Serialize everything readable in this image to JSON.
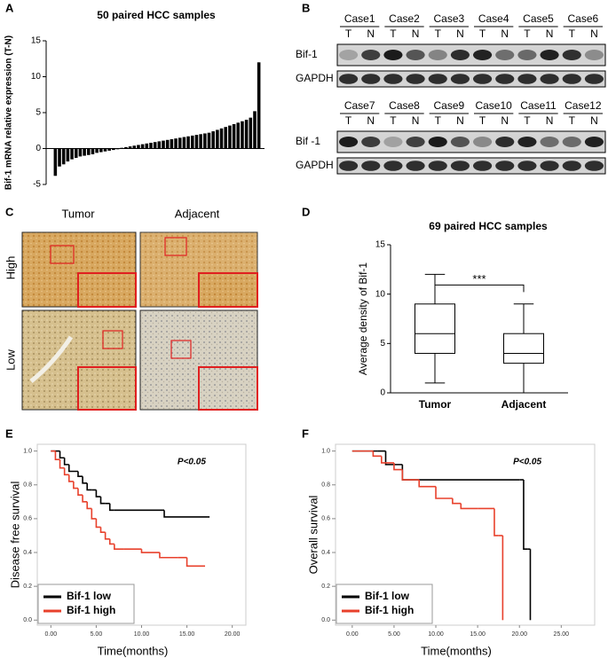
{
  "panel_labels": [
    "A",
    "B",
    "C",
    "D",
    "E",
    "F"
  ],
  "blots": {
    "lanes": [
      "T",
      "N"
    ],
    "groups": [
      {
        "cases": [
          "Case1",
          "Case2",
          "Case3",
          "Case4",
          "Case5",
          "Case6"
        ],
        "rows": [
          "Bif-1",
          "GAPDH"
        ]
      },
      {
        "cases": [
          "Case7",
          "Case8",
          "Case9",
          "Case10",
          "Case11",
          "Case12"
        ],
        "rows": [
          "Bif -1",
          "GAPDH"
        ]
      }
    ]
  },
  "ihc": {
    "columns": [
      "Tumor",
      "Adjacent"
    ],
    "rows": [
      "High",
      "Low"
    ]
  },
  "chart_data": [
    {
      "type": "bar",
      "title": "50 paired HCC samples",
      "ylabel": "Bif-1 mRNA relative expression (T-N)",
      "color": "#000000",
      "values": [
        -3.8,
        -2.5,
        -2.2,
        -1.8,
        -1.5,
        -1.3,
        -1.1,
        -1.0,
        -0.9,
        -0.8,
        -0.6,
        -0.5,
        -0.4,
        -0.3,
        -0.2,
        -0.1,
        0.1,
        0.2,
        0.3,
        0.4,
        0.5,
        0.6,
        0.7,
        0.8,
        0.9,
        1.0,
        1.1,
        1.2,
        1.3,
        1.4,
        1.5,
        1.6,
        1.7,
        1.8,
        1.9,
        2.0,
        2.1,
        2.2,
        2.4,
        2.6,
        2.8,
        3.0,
        3.2,
        3.4,
        3.6,
        3.8,
        4.0,
        4.3,
        5.2,
        12
      ],
      "ylim": [
        -5,
        15
      ],
      "yticks": [
        -5,
        0,
        5,
        10,
        15
      ]
    },
    {
      "type": "box",
      "title": "69 paired HCC samples",
      "ylabel": "Average density of Bif-1",
      "categories": [
        "Tumor",
        "Adjacent"
      ],
      "boxes": [
        {
          "min": 1,
          "q1": 4,
          "median": 6,
          "q3": 9,
          "max": 12
        },
        {
          "min": 0,
          "q1": 3,
          "median": 4,
          "q3": 6,
          "max": 9
        }
      ],
      "annotation": "***",
      "ylim": [
        0,
        15
      ],
      "yticks": [
        0,
        5,
        10,
        15
      ]
    },
    {
      "type": "line",
      "step": true,
      "xlabel": "Time(months)",
      "ylabel": "Disease free survival",
      "annotation": "P<0.05",
      "legend": "lower left",
      "xlim": [
        -1.5,
        21.5
      ],
      "xticks": [
        {
          "value": 0,
          "label": "0.00"
        },
        {
          "value": 5,
          "label": "5.00"
        },
        {
          "value": 10,
          "label": "10.00"
        },
        {
          "value": 15,
          "label": "15.00"
        },
        {
          "value": 20,
          "label": "20.00"
        }
      ],
      "ylim": [
        -0.03,
        1.04
      ],
      "yticks": [
        {
          "value": 0,
          "label": "0.0"
        },
        {
          "value": 0.2,
          "label": "0.2"
        },
        {
          "value": 0.4,
          "label": "0.4"
        },
        {
          "value": 0.6,
          "label": "0.6"
        },
        {
          "value": 0.8,
          "label": "0.8"
        },
        {
          "value": 1,
          "label": "1.0"
        }
      ],
      "series": [
        {
          "name": "Bif-1 low",
          "color": "#000000",
          "x": [
            0,
            1,
            1.5,
            2,
            3,
            3.5,
            4,
            4.5,
            5,
            5.5,
            6,
            6.5,
            7,
            12.5,
            17.5
          ],
          "values": [
            1,
            0.96,
            0.92,
            0.88,
            0.85,
            0.81,
            0.77,
            0.77,
            0.73,
            0.69,
            0.69,
            0.65,
            0.65,
            0.61,
            0.61
          ]
        },
        {
          "name": "Bif-1 high",
          "color": "#e8412c",
          "x": [
            0,
            0.5,
            1,
            1.5,
            2,
            2.5,
            3,
            3.5,
            4,
            4.5,
            5,
            5.5,
            6,
            6.5,
            7,
            8,
            10,
            12,
            14,
            15,
            17
          ],
          "values": [
            1,
            0.95,
            0.9,
            0.86,
            0.82,
            0.78,
            0.74,
            0.7,
            0.66,
            0.6,
            0.55,
            0.52,
            0.48,
            0.45,
            0.42,
            0.42,
            0.4,
            0.37,
            0.37,
            0.32,
            0.32
          ]
        }
      ]
    },
    {
      "type": "line",
      "step": true,
      "xlabel": "Time(months)",
      "ylabel": "Overall survival",
      "annotation": "P<0.05",
      "legend": "lower left",
      "xlim": [
        -2,
        29
      ],
      "xticks": [
        {
          "value": 0,
          "label": "0.00"
        },
        {
          "value": 5,
          "label": "5.00"
        },
        {
          "value": 10,
          "label": "10.00"
        },
        {
          "value": 15,
          "label": "15.00"
        },
        {
          "value": 20,
          "label": "20.00"
        },
        {
          "value": 25,
          "label": "25.00"
        }
      ],
      "ylim": [
        -0.03,
        1.04
      ],
      "yticks": [
        {
          "value": 0,
          "label": "0.0"
        },
        {
          "value": 0.2,
          "label": "0.2"
        },
        {
          "value": 0.4,
          "label": "0.4"
        },
        {
          "value": 0.6,
          "label": "0.6"
        },
        {
          "value": 0.8,
          "label": "0.8"
        },
        {
          "value": 1,
          "label": "1.0"
        }
      ],
      "series": [
        {
          "name": "Bif-1 low",
          "color": "#000000",
          "x": [
            0,
            3,
            4,
            6,
            20,
            20.5,
            21,
            21.3
          ],
          "values": [
            1,
            1,
            0.92,
            0.83,
            0.83,
            0.42,
            0.42,
            0
          ]
        },
        {
          "name": "Bif-1 high",
          "color": "#e8412c",
          "x": [
            0,
            2.5,
            3.5,
            5,
            6,
            8,
            10,
            12,
            13,
            15,
            17,
            17.5,
            18
          ],
          "values": [
            1,
            0.97,
            0.93,
            0.89,
            0.83,
            0.79,
            0.72,
            0.69,
            0.66,
            0.66,
            0.5,
            0.5,
            0
          ]
        }
      ]
    }
  ]
}
